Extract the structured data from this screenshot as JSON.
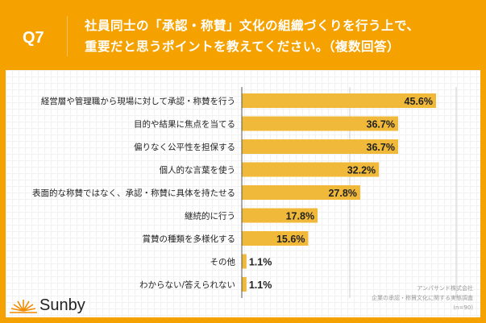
{
  "header": {
    "q": "Q7",
    "title_line1": "社員同士の「承認・称賛」文化の組織づくりを行う上で、",
    "title_line2": "重要だと思うポイントを教えてください。（複数回答）"
  },
  "brand": {
    "name": "Sunby"
  },
  "source": {
    "line1": "アンパサンド株式会社",
    "line2": "企業の承認・称賛文化に関する実態調査",
    "line3": "(n=90)"
  },
  "colors": {
    "bar": "#f0b93a",
    "frame": "#f5a200"
  },
  "chart_data": {
    "type": "bar",
    "orientation": "horizontal",
    "title": "",
    "xlabel": "",
    "ylabel": "",
    "xlim": [
      0,
      50
    ],
    "categories": [
      "経営層や管理職から現場に対して承認・称賛を行う",
      "目的や結果に焦点を当てる",
      "偏りなく公平性を担保する",
      "個人的な言葉を使う",
      "表面的な称賛ではなく、承認・称賛に具体を持たせる",
      "継続的に行う",
      "賞賛の種類を多様化する",
      "その他",
      "わからない/答えられない"
    ],
    "values": [
      45.6,
      36.7,
      36.7,
      32.2,
      27.8,
      17.8,
      15.6,
      1.1,
      1.1
    ],
    "labels": [
      "45.6%",
      "36.7%",
      "36.7%",
      "32.2%",
      "27.8%",
      "17.8%",
      "15.6%",
      "1.1%",
      "1.1%"
    ]
  }
}
